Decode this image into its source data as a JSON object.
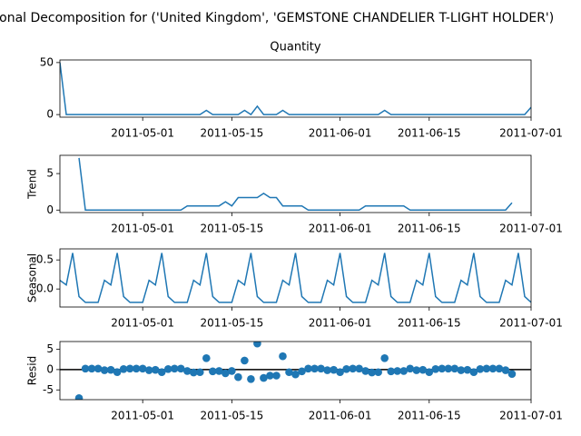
{
  "title": "Seasonal Decomposition for ('United Kingdom', 'GEMSTONE CHANDELIER T-LIGHT HOLDER')",
  "chart_data": [
    {
      "type": "line",
      "title": "Quantity",
      "color": "#1f77b4",
      "x": [
        "2011-04-18",
        "2011-04-19",
        "2011-04-20",
        "2011-04-21",
        "2011-04-22",
        "2011-04-23",
        "2011-04-24",
        "2011-04-25",
        "2011-04-26",
        "2011-04-27",
        "2011-04-28",
        "2011-04-29",
        "2011-04-30",
        "2011-05-01",
        "2011-05-02",
        "2011-05-03",
        "2011-05-04",
        "2011-05-05",
        "2011-05-06",
        "2011-05-07",
        "2011-05-08",
        "2011-05-09",
        "2011-05-10",
        "2011-05-11",
        "2011-05-12",
        "2011-05-13",
        "2011-05-14",
        "2011-05-15",
        "2011-05-16",
        "2011-05-17",
        "2011-05-18",
        "2011-05-19",
        "2011-05-20",
        "2011-05-21",
        "2011-05-22",
        "2011-05-23",
        "2011-05-24",
        "2011-05-25",
        "2011-05-26",
        "2011-05-27",
        "2011-05-28",
        "2011-05-29",
        "2011-05-30",
        "2011-05-31",
        "2011-06-01",
        "2011-06-02",
        "2011-06-03",
        "2011-06-04",
        "2011-06-05",
        "2011-06-06",
        "2011-06-07",
        "2011-06-08",
        "2011-06-09",
        "2011-06-10",
        "2011-06-11",
        "2011-06-12",
        "2011-06-13",
        "2011-06-14",
        "2011-06-15",
        "2011-06-16",
        "2011-06-17",
        "2011-06-18",
        "2011-06-19",
        "2011-06-20",
        "2011-06-21",
        "2011-06-22",
        "2011-06-23",
        "2011-06-24",
        "2011-06-25",
        "2011-06-26",
        "2011-06-27",
        "2011-06-28",
        "2011-06-29",
        "2011-06-30",
        "2011-07-01"
      ],
      "xlim": [
        "2011-04-18",
        "2011-07-01"
      ],
      "xticks": [
        "2011-05-01",
        "2011-05-15",
        "2011-06-01",
        "2011-06-15",
        "2011-07-01"
      ],
      "values": [
        50,
        0,
        0,
        0,
        0,
        0,
        0,
        0,
        0,
        0,
        0,
        0,
        0,
        0,
        0,
        0,
        0,
        0,
        0,
        0,
        0,
        0,
        0,
        4,
        0,
        0,
        0,
        0,
        0,
        4,
        0,
        8,
        0,
        0,
        0,
        4,
        0,
        0,
        0,
        0,
        0,
        0,
        0,
        0,
        0,
        0,
        0,
        0,
        0,
        0,
        0,
        4,
        0,
        0,
        0,
        0,
        0,
        0,
        0,
        0,
        0,
        0,
        0,
        0,
        0,
        0,
        0,
        0,
        0,
        0,
        0,
        0,
        0,
        0,
        7
      ],
      "ylim": [
        -2.5,
        52.5
      ],
      "yticks": [
        0,
        50
      ]
    },
    {
      "type": "line",
      "ylabel": "Trend",
      "color": "#1f77b4",
      "values": [
        null,
        null,
        null,
        7.14,
        0,
        0,
        0,
        0,
        0,
        0,
        0,
        0,
        0,
        0,
        0,
        0,
        0,
        0,
        0,
        0,
        0.57,
        0.57,
        0.57,
        0.57,
        0.57,
        0.57,
        1.14,
        0.57,
        1.71,
        1.71,
        1.71,
        1.71,
        2.29,
        1.71,
        1.71,
        0.57,
        0.57,
        0.57,
        0.57,
        0,
        0,
        0,
        0,
        0,
        0,
        0,
        0,
        0,
        0.57,
        0.57,
        0.57,
        0.57,
        0.57,
        0.57,
        0.57,
        0,
        0,
        0,
        0,
        0,
        0,
        0,
        0,
        0,
        0,
        0,
        0,
        0,
        0,
        0,
        0,
        1,
        null,
        null,
        null
      ],
      "ylim": [
        -0.34,
        7.5
      ],
      "yticks": [
        0,
        5
      ]
    },
    {
      "type": "line",
      "ylabel": "Seasonal",
      "color": "#1f77b4",
      "values": [
        0.15,
        0.07,
        0.62,
        -0.13,
        -0.23,
        -0.23,
        -0.23,
        0.15,
        0.07,
        0.62,
        -0.13,
        -0.23,
        -0.23,
        -0.23,
        0.15,
        0.07,
        0.62,
        -0.13,
        -0.23,
        -0.23,
        -0.23,
        0.15,
        0.07,
        0.62,
        -0.13,
        -0.23,
        -0.23,
        -0.23,
        0.15,
        0.07,
        0.62,
        -0.13,
        -0.23,
        -0.23,
        -0.23,
        0.15,
        0.07,
        0.62,
        -0.13,
        -0.23,
        -0.23,
        -0.23,
        0.15,
        0.07,
        0.62,
        -0.13,
        -0.23,
        -0.23,
        -0.23,
        0.15,
        0.07,
        0.62,
        -0.13,
        -0.23,
        -0.23,
        -0.23,
        0.15,
        0.07,
        0.62,
        -0.13,
        -0.23,
        -0.23,
        -0.23,
        0.15,
        0.07,
        0.62,
        -0.13,
        -0.23,
        -0.23,
        -0.23,
        0.15,
        0.07,
        0.62,
        -0.13,
        -0.23
      ],
      "ylim": [
        -0.31,
        0.69
      ],
      "yticks": [
        {
          "value": 0,
          "label": "0.0"
        },
        0.5
      ]
    },
    {
      "type": "scatter",
      "ylabel": "Resid",
      "color": "#1f77b4",
      "hline": 0,
      "values": [
        null,
        null,
        null,
        -7.01,
        0.23,
        0.23,
        0.23,
        -0.15,
        -0.07,
        -0.62,
        0.13,
        0.23,
        0.23,
        0.23,
        -0.15,
        -0.07,
        -0.62,
        0.13,
        0.23,
        0.23,
        -0.34,
        -0.72,
        -0.64,
        2.81,
        -0.44,
        -0.34,
        -0.91,
        -0.34,
        -1.86,
        2.22,
        -2.33,
        6.42,
        -2.06,
        -1.48,
        -1.48,
        3.28,
        -0.64,
        -1.19,
        -0.44,
        0.23,
        0.23,
        0.23,
        -0.15,
        -0.07,
        -0.62,
        0.13,
        0.23,
        0.23,
        -0.34,
        -0.72,
        -0.64,
        2.81,
        -0.44,
        -0.34,
        -0.34,
        0.23,
        -0.15,
        -0.07,
        -0.62,
        0.13,
        0.23,
        0.23,
        0.23,
        -0.15,
        -0.07,
        -0.62,
        0.13,
        0.23,
        0.23,
        0.23,
        -0.15,
        -1.07,
        null,
        null,
        null
      ],
      "ylim": [
        -7.4,
        6.9
      ],
      "yticks": [
        -5,
        0,
        5
      ]
    }
  ]
}
